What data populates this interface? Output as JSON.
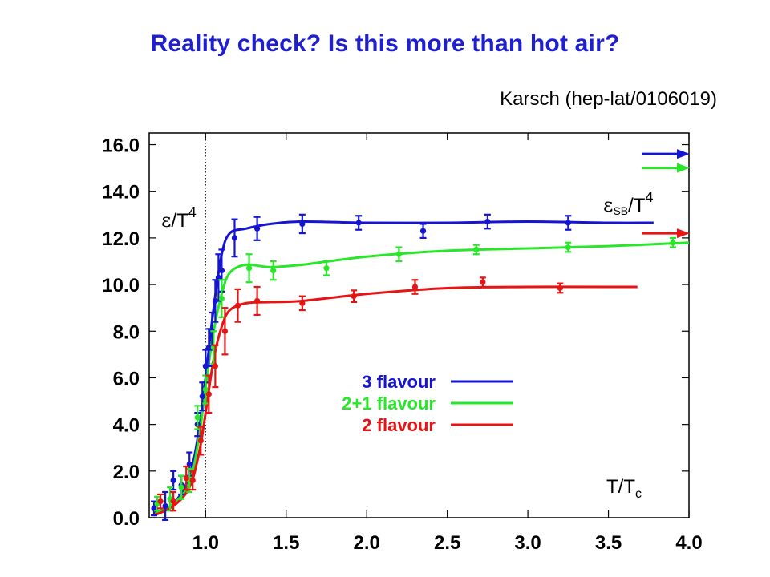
{
  "slide": {
    "title": "Reality check? Is this more than hot air?",
    "citation": "Karsch (hep-lat/0106019)"
  },
  "chart_data": {
    "type": "line",
    "xlabel": "T/T_c",
    "xlabel_main": "T/T",
    "xlabel_sub": "c",
    "ylabel_sym": "ε",
    "ylabel_rest": "/T",
    "ylabel_exp": "4",
    "sb_sym": "ε",
    "sb_sub": "SB",
    "sb_rest": "/T",
    "sb_exp": "4",
    "xlim": [
      0.65,
      4.0
    ],
    "ylim": [
      0.0,
      16.5
    ],
    "x_ticks": [
      "1.0",
      "1.5",
      "2.0",
      "2.5",
      "3.0",
      "3.5",
      "4.0"
    ],
    "x_tick_values": [
      1.0,
      1.5,
      2.0,
      2.5,
      3.0,
      3.5,
      4.0
    ],
    "y_ticks": [
      "0.0",
      "2.0",
      "4.0",
      "6.0",
      "8.0",
      "10.0",
      "12.0",
      "14.0",
      "16.0"
    ],
    "y_tick_values": [
      0,
      2,
      4,
      6,
      8,
      10,
      12,
      14,
      16
    ],
    "tc_line_x": 1.0,
    "legend_position": "center",
    "series": [
      {
        "name": "3 flavour",
        "color": "#1414d2",
        "sb_limit": 15.6,
        "curve": [
          [
            0.68,
            0.2
          ],
          [
            0.8,
            0.6
          ],
          [
            0.9,
            1.8
          ],
          [
            0.96,
            3.8
          ],
          [
            1.0,
            6.0
          ],
          [
            1.05,
            9.0
          ],
          [
            1.1,
            11.3
          ],
          [
            1.15,
            12.2
          ],
          [
            1.25,
            12.4
          ],
          [
            1.4,
            12.6
          ],
          [
            1.6,
            12.7
          ],
          [
            2.0,
            12.65
          ],
          [
            2.5,
            12.65
          ],
          [
            3.0,
            12.7
          ],
          [
            3.5,
            12.65
          ],
          [
            3.78,
            12.65
          ]
        ],
        "points": [
          [
            0.68,
            0.4,
            0.3
          ],
          [
            0.75,
            0.5,
            0.6
          ],
          [
            0.8,
            1.6,
            0.4
          ],
          [
            0.85,
            1.4,
            0.4
          ],
          [
            0.9,
            2.3,
            0.5
          ],
          [
            0.95,
            4.0,
            0.5
          ],
          [
            0.98,
            5.2,
            0.6
          ],
          [
            1.0,
            6.5,
            0.7
          ],
          [
            1.02,
            7.3,
            0.8
          ],
          [
            1.04,
            8.0,
            0.8
          ],
          [
            1.06,
            9.3,
            0.9
          ],
          [
            1.08,
            10.3,
            1.0
          ],
          [
            1.1,
            10.6,
            0.9
          ],
          [
            1.18,
            12.0,
            0.8
          ],
          [
            1.32,
            12.4,
            0.5
          ],
          [
            1.6,
            12.6,
            0.4
          ],
          [
            1.95,
            12.65,
            0.3
          ],
          [
            2.35,
            12.3,
            0.3
          ],
          [
            2.75,
            12.7,
            0.3
          ],
          [
            3.25,
            12.65,
            0.3
          ]
        ]
      },
      {
        "name": "2+1 flavour",
        "color": "#28e628",
        "sb_limit": 15.0,
        "curve": [
          [
            0.68,
            0.15
          ],
          [
            0.8,
            0.6
          ],
          [
            0.9,
            1.5
          ],
          [
            0.96,
            3.5
          ],
          [
            1.0,
            5.6
          ],
          [
            1.05,
            8.0
          ],
          [
            1.1,
            9.6
          ],
          [
            1.15,
            10.5
          ],
          [
            1.25,
            10.85
          ],
          [
            1.4,
            10.75
          ],
          [
            1.6,
            10.85
          ],
          [
            2.0,
            11.2
          ],
          [
            2.5,
            11.45
          ],
          [
            3.0,
            11.55
          ],
          [
            3.5,
            11.65
          ],
          [
            4.0,
            11.8
          ]
        ],
        "points": [
          [
            0.7,
            0.6,
            0.3
          ],
          [
            0.78,
            0.8,
            0.5
          ],
          [
            0.85,
            1.3,
            0.5
          ],
          [
            0.9,
            1.6,
            0.5
          ],
          [
            0.95,
            4.3,
            0.5
          ],
          [
            1.0,
            5.5,
            0.6
          ],
          [
            1.05,
            7.3,
            0.7
          ],
          [
            1.1,
            9.4,
            0.8
          ],
          [
            1.27,
            10.7,
            0.6
          ],
          [
            1.42,
            10.6,
            0.4
          ],
          [
            1.75,
            10.7,
            0.3
          ],
          [
            2.2,
            11.3,
            0.3
          ],
          [
            2.68,
            11.5,
            0.2
          ],
          [
            3.25,
            11.6,
            0.2
          ],
          [
            3.9,
            11.8,
            0.2
          ]
        ]
      },
      {
        "name": "2 flavour",
        "color": "#e61414",
        "sb_limit": 12.2,
        "curve": [
          [
            0.68,
            0.1
          ],
          [
            0.8,
            0.5
          ],
          [
            0.9,
            1.3
          ],
          [
            0.96,
            2.8
          ],
          [
            1.0,
            4.5
          ],
          [
            1.05,
            6.8
          ],
          [
            1.1,
            8.2
          ],
          [
            1.15,
            8.9
          ],
          [
            1.25,
            9.2
          ],
          [
            1.4,
            9.25
          ],
          [
            1.6,
            9.3
          ],
          [
            2.0,
            9.6
          ],
          [
            2.5,
            9.85
          ],
          [
            3.0,
            9.9
          ],
          [
            3.5,
            9.9
          ],
          [
            3.68,
            9.9
          ]
        ],
        "points": [
          [
            0.72,
            0.7,
            0.3
          ],
          [
            0.8,
            0.7,
            0.4
          ],
          [
            0.88,
            1.7,
            0.5
          ],
          [
            0.92,
            1.6,
            0.4
          ],
          [
            0.97,
            3.3,
            0.6
          ],
          [
            1.02,
            5.3,
            0.8
          ],
          [
            1.06,
            6.5,
            0.9
          ],
          [
            1.12,
            8.0,
            1.0
          ],
          [
            1.2,
            9.1,
            0.7
          ],
          [
            1.32,
            9.3,
            0.6
          ],
          [
            1.6,
            9.2,
            0.3
          ],
          [
            1.92,
            9.5,
            0.25
          ],
          [
            2.3,
            9.9,
            0.3
          ],
          [
            2.72,
            10.1,
            0.2
          ],
          [
            3.2,
            9.85,
            0.2
          ]
        ]
      }
    ]
  }
}
